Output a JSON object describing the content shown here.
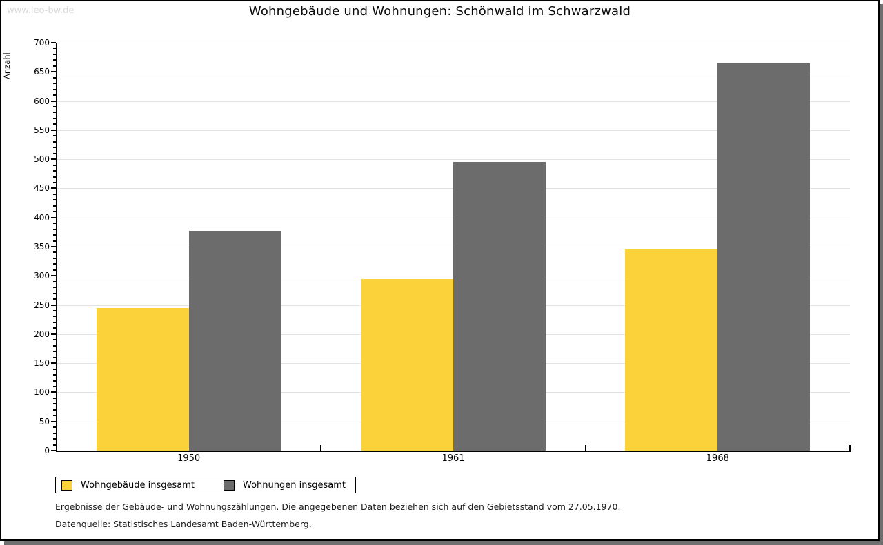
{
  "watermark": "www.leo-bw.de",
  "title": "Wohngebäude und Wohnungen: Schönwald im Schwarzwald",
  "chart_data": {
    "type": "bar",
    "title": "Wohngebäude und Wohnungen: Schönwald im Schwarzwald",
    "ylabel": "Anzahl",
    "xlabel": "",
    "categories": [
      "1950",
      "1961",
      "1968"
    ],
    "series": [
      {
        "name": "Wohngebäude insgesamt",
        "color": "#FBD23A",
        "values": [
          245,
          294,
          345
        ]
      },
      {
        "name": "Wohnungen insgesamt",
        "color": "#6C6C6C",
        "values": [
          377,
          495,
          665
        ]
      }
    ],
    "ylim": [
      0,
      700
    ],
    "ytick_major": 50,
    "ytick_minor": 10,
    "grid": "horizontal-major",
    "legend_position": "bottom-left"
  },
  "footer": {
    "line1": "Ergebnisse der Gebäude- und Wohnungszählungen. Die angegebenen Daten beziehen sich auf den Gebietsstand vom 27.05.1970.",
    "line2": "Datenquelle: Statistisches Landesamt Baden-Württemberg."
  },
  "colors": {
    "bar_yellow": "#FBD23A",
    "bar_gray": "#6C6C6C",
    "gridline": "#E3E3E3",
    "axis": "#000000",
    "frame_border": "#000000",
    "frame_shadow": "#6F6F6F",
    "watermark": "#D8D8D8"
  }
}
